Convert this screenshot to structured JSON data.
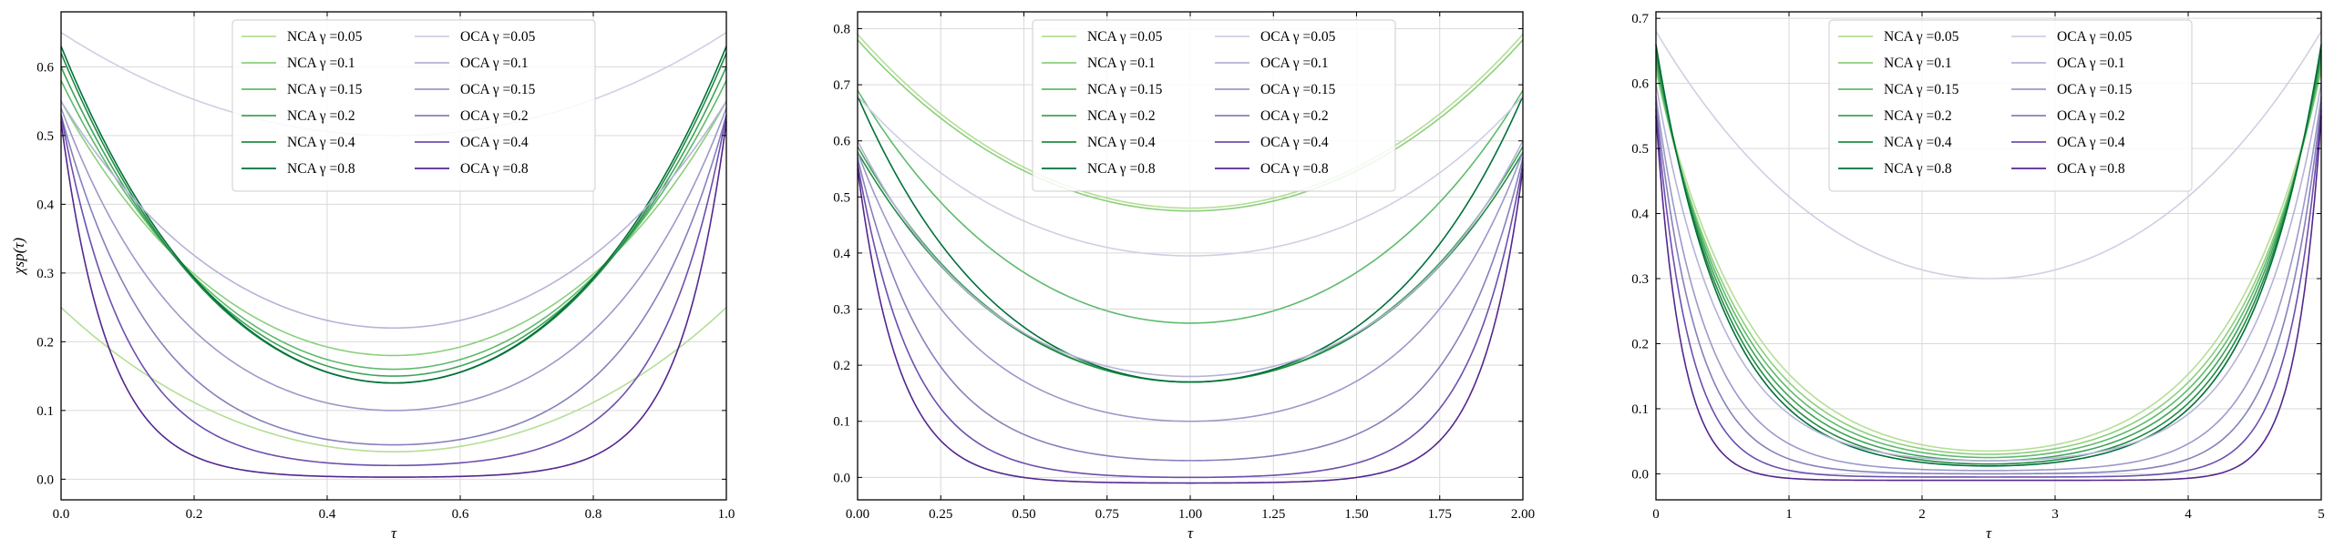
{
  "figure": {
    "ylabel": "χsp(τ)"
  },
  "legend": {
    "labels": [
      "NCA γ =0.05",
      "NCA γ =0.1",
      "NCA γ =0.15",
      "NCA γ =0.2",
      "NCA γ =0.4",
      "NCA γ =0.8",
      "OCA γ =0.05",
      "OCA γ =0.1",
      "OCA γ =0.15",
      "OCA γ =0.2",
      "OCA γ =0.4",
      "OCA γ =0.8"
    ]
  },
  "colors": {
    "nca": [
      "#b5de95",
      "#8ccf7d",
      "#5fba6c",
      "#3fa458",
      "#238b45",
      "#00703a"
    ],
    "oca": [
      "#cfcfe4",
      "#b6b3d8",
      "#9d98ca",
      "#8581bc",
      "#6d4fae",
      "#54278f"
    ],
    "grid": "#d9d9d9"
  },
  "chart_data": [
    {
      "type": "line",
      "xlabel": "τ",
      "ylabel": "χsp(τ)",
      "xlim": [
        0,
        1
      ],
      "ylim": [
        -0.03,
        0.68
      ],
      "xticks": [
        0.0,
        0.2,
        0.4,
        0.6,
        0.8,
        1.0
      ],
      "xtick_labels": [
        "0.0",
        "0.2",
        "0.4",
        "0.6",
        "0.8",
        "1.0"
      ],
      "yticks": [
        0.0,
        0.1,
        0.2,
        0.3,
        0.4,
        0.5,
        0.6
      ],
      "ytick_labels": [
        "0.0",
        "0.1",
        "0.2",
        "0.3",
        "0.4",
        "0.5",
        "0.6"
      ],
      "grid": true,
      "legend_position": "top-center",
      "series": [
        {
          "name": "NCA γ =0.05",
          "group": "nca",
          "index": 0,
          "edge": 0.25,
          "min": 0.04,
          "k": 2.0
        },
        {
          "name": "NCA γ =0.1",
          "group": "nca",
          "index": 1,
          "edge": 0.55,
          "min": 0.18,
          "k": 3.0
        },
        {
          "name": "NCA γ =0.15",
          "group": "nca",
          "index": 2,
          "edge": 0.58,
          "min": 0.16,
          "k": 3.0
        },
        {
          "name": "NCA γ =0.2",
          "group": "nca",
          "index": 3,
          "edge": 0.6,
          "min": 0.15,
          "k": 3.2
        },
        {
          "name": "NCA γ =0.4",
          "group": "nca",
          "index": 4,
          "edge": 0.62,
          "min": 0.14,
          "k": 3.3
        },
        {
          "name": "NCA γ =0.8",
          "group": "nca",
          "index": 5,
          "edge": 0.63,
          "min": 0.14,
          "k": 3.3
        },
        {
          "name": "OCA γ =0.05",
          "group": "oca",
          "index": 0,
          "edge": 0.65,
          "min": 0.5,
          "k": 1.5
        },
        {
          "name": "OCA γ =0.1",
          "group": "oca",
          "index": 1,
          "edge": 0.55,
          "min": 0.22,
          "k": 3.0
        },
        {
          "name": "OCA γ =0.15",
          "group": "oca",
          "index": 2,
          "edge": 0.54,
          "min": 0.1,
          "k": 5.0
        },
        {
          "name": "OCA γ =0.2",
          "group": "oca",
          "index": 3,
          "edge": 0.53,
          "min": 0.05,
          "k": 7.0
        },
        {
          "name": "OCA γ =0.4",
          "group": "oca",
          "index": 4,
          "edge": 0.53,
          "min": 0.02,
          "k": 10.0
        },
        {
          "name": "OCA γ =0.8",
          "group": "oca",
          "index": 5,
          "edge": 0.52,
          "min": 0.003,
          "k": 14.0
        }
      ]
    },
    {
      "type": "line",
      "xlabel": "τ",
      "ylabel": "",
      "xlim": [
        0,
        2
      ],
      "ylim": [
        -0.04,
        0.83
      ],
      "xticks": [
        0.0,
        0.25,
        0.5,
        0.75,
        1.0,
        1.25,
        1.5,
        1.75,
        2.0
      ],
      "xtick_labels": [
        "0.00",
        "0.25",
        "0.50",
        "0.75",
        "1.00",
        "1.25",
        "1.50",
        "1.75",
        "2.00"
      ],
      "yticks": [
        0.0,
        0.1,
        0.2,
        0.3,
        0.4,
        0.5,
        0.6,
        0.7,
        0.8
      ],
      "ytick_labels": [
        "0.0",
        "0.1",
        "0.2",
        "0.3",
        "0.4",
        "0.5",
        "0.6",
        "0.7",
        "0.8"
      ],
      "grid": true,
      "legend_position": "top-center",
      "series": [
        {
          "name": "NCA γ =0.05",
          "group": "nca",
          "index": 0,
          "edge": 0.79,
          "min": 0.48,
          "k": 2.0
        },
        {
          "name": "NCA γ =0.1",
          "group": "nca",
          "index": 1,
          "edge": 0.78,
          "min": 0.475,
          "k": 2.0
        },
        {
          "name": "NCA γ =0.15",
          "group": "nca",
          "index": 2,
          "edge": 0.69,
          "min": 0.275,
          "k": 3.0
        },
        {
          "name": "NCA γ =0.2",
          "group": "nca",
          "index": 3,
          "edge": 0.59,
          "min": 0.17,
          "k": 3.5
        },
        {
          "name": "NCA γ =0.4",
          "group": "nca",
          "index": 4,
          "edge": 0.58,
          "min": 0.17,
          "k": 3.5
        },
        {
          "name": "NCA γ =0.8",
          "group": "nca",
          "index": 5,
          "edge": 0.68,
          "min": 0.17,
          "k": 4.2
        },
        {
          "name": "OCA γ =0.05",
          "group": "oca",
          "index": 0,
          "edge": 0.68,
          "min": 0.395,
          "k": 3.0
        },
        {
          "name": "OCA γ =0.1",
          "group": "oca",
          "index": 1,
          "edge": 0.6,
          "min": 0.18,
          "k": 4.5
        },
        {
          "name": "OCA γ =0.15",
          "group": "oca",
          "index": 2,
          "edge": 0.58,
          "min": 0.1,
          "k": 6.0
        },
        {
          "name": "OCA γ =0.2",
          "group": "oca",
          "index": 3,
          "edge": 0.57,
          "min": 0.03,
          "k": 9.0
        },
        {
          "name": "OCA γ =0.4",
          "group": "oca",
          "index": 4,
          "edge": 0.56,
          "min": 0.0,
          "k": 12.0
        },
        {
          "name": "OCA γ =0.8",
          "group": "oca",
          "index": 5,
          "edge": 0.55,
          "min": -0.01,
          "k": 16.0
        }
      ]
    },
    {
      "type": "line",
      "xlabel": "τ",
      "ylabel": "",
      "xlim": [
        0,
        5
      ],
      "ylim": [
        -0.04,
        0.71
      ],
      "xticks": [
        0,
        1,
        2,
        3,
        4,
        5
      ],
      "xtick_labels": [
        "0",
        "1",
        "2",
        "3",
        "4",
        "5"
      ],
      "yticks": [
        0.0,
        0.1,
        0.2,
        0.3,
        0.4,
        0.5,
        0.6,
        0.7
      ],
      "ytick_labels": [
        "0.0",
        "0.1",
        "0.2",
        "0.3",
        "0.4",
        "0.5",
        "0.6",
        "0.7"
      ],
      "grid": true,
      "legend_position": "top-center",
      "series": [
        {
          "name": "NCA γ =0.05",
          "group": "nca",
          "index": 0,
          "edge": 0.62,
          "min": 0.035,
          "k": 7.0
        },
        {
          "name": "NCA γ =0.1",
          "group": "nca",
          "index": 1,
          "edge": 0.62,
          "min": 0.03,
          "k": 7.5
        },
        {
          "name": "NCA γ =0.15",
          "group": "nca",
          "index": 2,
          "edge": 0.63,
          "min": 0.025,
          "k": 8.0
        },
        {
          "name": "NCA γ =0.2",
          "group": "nca",
          "index": 3,
          "edge": 0.64,
          "min": 0.02,
          "k": 8.5
        },
        {
          "name": "NCA γ =0.4",
          "group": "nca",
          "index": 4,
          "edge": 0.65,
          "min": 0.015,
          "k": 9.0
        },
        {
          "name": "NCA γ =0.8",
          "group": "nca",
          "index": 5,
          "edge": 0.66,
          "min": 0.012,
          "k": 9.5
        },
        {
          "name": "OCA γ =0.05",
          "group": "oca",
          "index": 0,
          "edge": 0.68,
          "min": 0.3,
          "k": 2.5
        },
        {
          "name": "OCA γ =0.1",
          "group": "oca",
          "index": 1,
          "edge": 0.6,
          "min": 0.02,
          "k": 10.0
        },
        {
          "name": "OCA γ =0.15",
          "group": "oca",
          "index": 2,
          "edge": 0.58,
          "min": 0.005,
          "k": 13.0
        },
        {
          "name": "OCA γ =0.2",
          "group": "oca",
          "index": 3,
          "edge": 0.57,
          "min": 0.0,
          "k": 16.0
        },
        {
          "name": "OCA γ =0.4",
          "group": "oca",
          "index": 4,
          "edge": 0.56,
          "min": -0.005,
          "k": 20.0
        },
        {
          "name": "OCA γ =0.8",
          "group": "oca",
          "index": 5,
          "edge": 0.55,
          "min": -0.01,
          "k": 26.0
        }
      ]
    }
  ]
}
